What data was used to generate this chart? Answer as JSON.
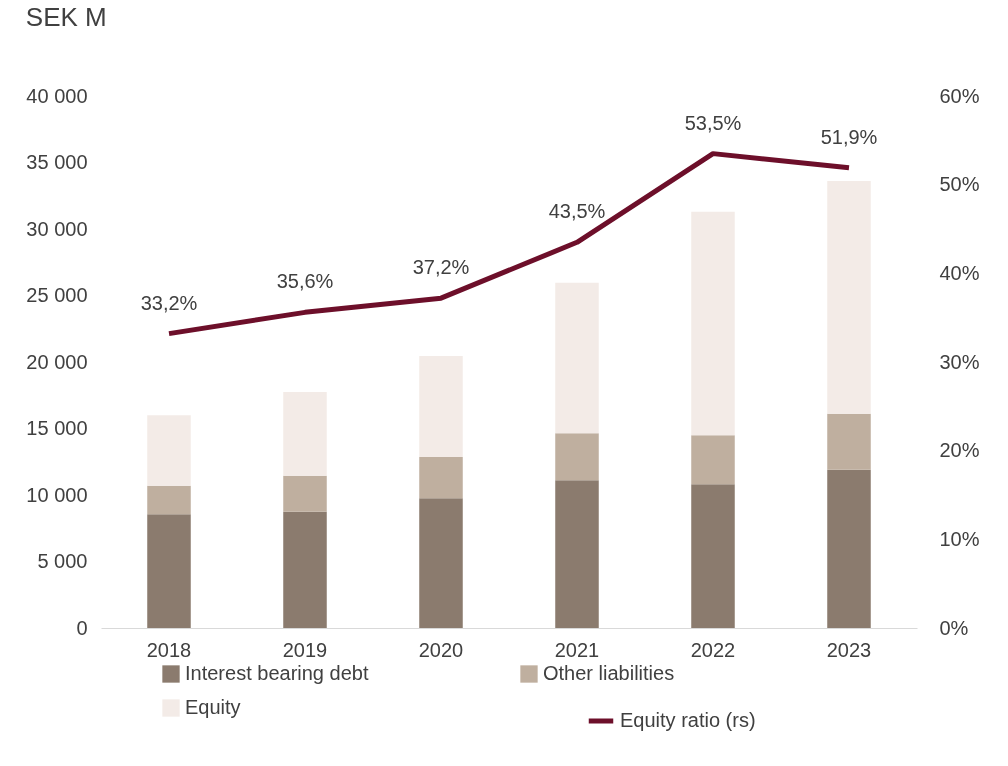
{
  "chart_data": {
    "type": "bar",
    "title": "SEK M",
    "stacked": true,
    "categories": [
      "2018",
      "2019",
      "2020",
      "2021",
      "2022",
      "2023"
    ],
    "series": [
      {
        "name": "Interest bearing debt",
        "color": "#8b7b6e",
        "values": [
          8550,
          8750,
          9750,
          11100,
          10800,
          11900
        ]
      },
      {
        "name": "Other liabilities",
        "color": "#bfaf9f",
        "values": [
          2150,
          2700,
          3100,
          3550,
          3700,
          4200
        ]
      },
      {
        "name": "Equity",
        "color": "#f3ebe7",
        "values": [
          5300,
          6300,
          7600,
          11300,
          16800,
          17500
        ]
      },
      {
        "name": "Equity ratio (rs)",
        "type": "line",
        "axis": "y2",
        "color": "#6d0f2a",
        "values": [
          33.2,
          35.6,
          37.2,
          43.5,
          53.5,
          51.9
        ],
        "value_labels": [
          "33,2%",
          "35,6%",
          "37,2%",
          "43,5%",
          "53,5%",
          "51,9%"
        ]
      }
    ],
    "ylim": [
      0,
      40000
    ],
    "yticks": [
      {
        "value": 0,
        "label": "0"
      },
      {
        "value": 5000,
        "label": "5 000"
      },
      {
        "value": 10000,
        "label": "10 000"
      },
      {
        "value": 15000,
        "label": "15 000"
      },
      {
        "value": 20000,
        "label": "20 000"
      },
      {
        "value": 25000,
        "label": "25 000"
      },
      {
        "value": 30000,
        "label": "30 000"
      },
      {
        "value": 35000,
        "label": "35 000"
      },
      {
        "value": 40000,
        "label": "40 000"
      }
    ],
    "y2lim": [
      0,
      60
    ],
    "y2ticks": [
      {
        "value": 0,
        "label": "0%"
      },
      {
        "value": 10,
        "label": "10%"
      },
      {
        "value": 20,
        "label": "20%"
      },
      {
        "value": 30,
        "label": "30%"
      },
      {
        "value": 40,
        "label": "40%"
      },
      {
        "value": 50,
        "label": "50%"
      },
      {
        "value": 60,
        "label": "60%"
      }
    ],
    "grid": false,
    "legend": "bottom",
    "line_style": "solid",
    "marker": "none"
  }
}
